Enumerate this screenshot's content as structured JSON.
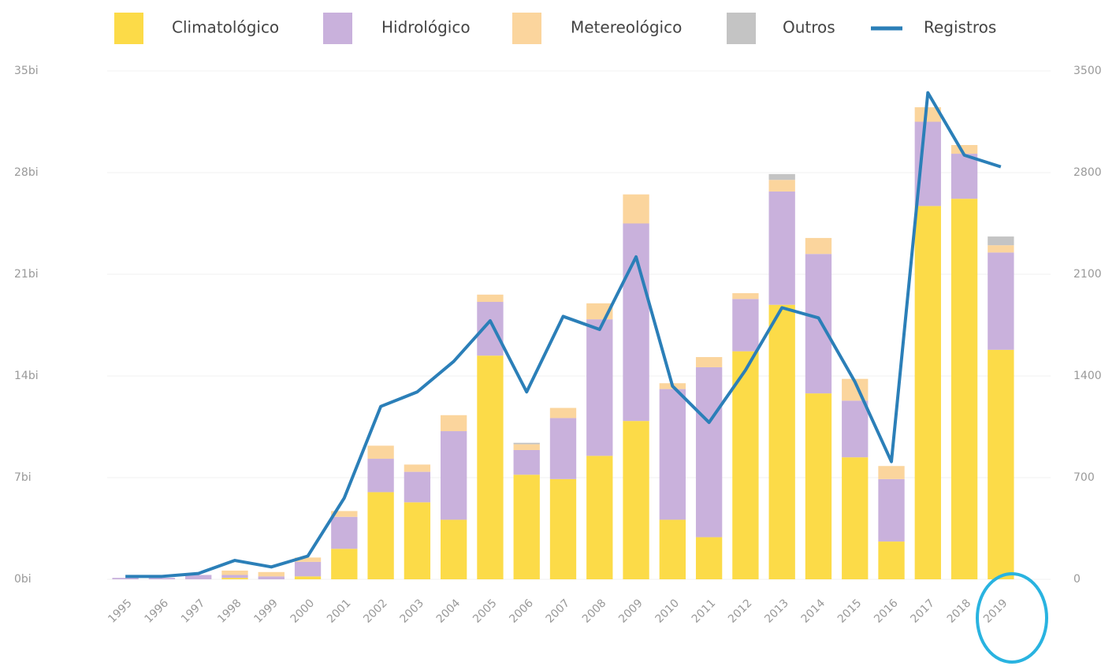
{
  "chart_data": {
    "type": "bar",
    "stacked": true,
    "categories": [
      "1995",
      "1996",
      "1997",
      "1998",
      "1999",
      "2000",
      "2001",
      "2002",
      "2003",
      "2004",
      "2005",
      "2006",
      "2007",
      "2008",
      "2009",
      "2010",
      "2011",
      "2012",
      "2013",
      "2014",
      "2015",
      "2016",
      "2017",
      "2018",
      "2019"
    ],
    "series": [
      {
        "name": "Climatológico",
        "color": "#fcdb48",
        "values": [
          0,
          0,
          0,
          0.1,
          0,
          0.2,
          2.1,
          6.0,
          5.3,
          4.1,
          15.4,
          7.2,
          6.9,
          8.5,
          10.9,
          4.1,
          2.9,
          15.7,
          18.9,
          12.8,
          8.4,
          2.6,
          25.7,
          26.2,
          15.8
        ]
      },
      {
        "name": "Hidrológico",
        "color": "#c9b1dc",
        "values": [
          0.1,
          0.1,
          0.3,
          0.2,
          0.2,
          1.0,
          2.2,
          2.3,
          2.1,
          6.1,
          3.7,
          1.7,
          4.2,
          9.4,
          13.6,
          9.0,
          11.7,
          3.6,
          7.8,
          9.6,
          3.9,
          4.3,
          5.8,
          3.1,
          6.7
        ]
      },
      {
        "name": "Metereológico",
        "color": "#fbd59d",
        "values": [
          0,
          0,
          0,
          0.3,
          0.3,
          0.3,
          0.4,
          0.9,
          0.5,
          1.1,
          0.5,
          0.4,
          0.7,
          1.1,
          2.0,
          0.4,
          0.7,
          0.4,
          0.8,
          1.1,
          1.5,
          0.9,
          1.0,
          0.6,
          0.5
        ]
      },
      {
        "name": "Outros",
        "color": "#c4c4c4",
        "values": [
          0,
          0,
          0,
          0,
          0,
          0,
          0,
          0,
          0,
          0,
          0,
          0.1,
          0,
          0,
          0,
          0,
          0,
          0,
          0.4,
          0,
          0,
          0,
          0,
          0,
          0.6
        ]
      },
      {
        "name": "Registros",
        "color": "#2b7fb8",
        "type": "line",
        "axis": "y2",
        "values": [
          20,
          20,
          40,
          130,
          85,
          160,
          560,
          1190,
          1290,
          1500,
          1780,
          1290,
          1810,
          1720,
          2220,
          1330,
          1080,
          1440,
          1870,
          1800,
          1360,
          810,
          3350,
          2920,
          2840
        ]
      }
    ],
    "ylim": [
      0,
      35
    ],
    "yticks": [
      {
        "value": 0,
        "label": "0bi"
      },
      {
        "value": 7,
        "label": "7bi"
      },
      {
        "value": 14,
        "label": "14bi"
      },
      {
        "value": 21,
        "label": "21bi"
      },
      {
        "value": 28,
        "label": "28bi"
      },
      {
        "value": 35,
        "label": "35bi"
      }
    ],
    "y2lim": [
      0,
      3500
    ],
    "y2ticks": [
      0,
      700,
      1400,
      2100,
      2800,
      3500
    ],
    "grid": true,
    "legend": "top"
  }
}
